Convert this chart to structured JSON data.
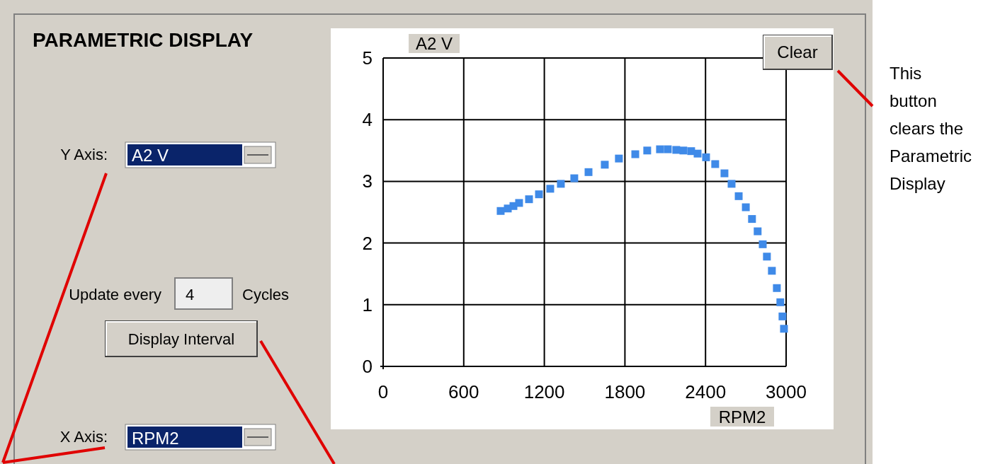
{
  "chart_data": {
    "type": "scatter",
    "title": "PARAMETRIC DISPLAY",
    "xlabel": "RPM2",
    "ylabel": "A2 V",
    "x": [
      875,
      928,
      970,
      1012,
      1086,
      1160,
      1244,
      1323,
      1423,
      1529,
      1650,
      1755,
      1877,
      1966,
      2061,
      2119,
      2182,
      2235,
      2293,
      2341,
      2404,
      2472,
      2541,
      2594,
      2647,
      2700,
      2746,
      2788,
      2826,
      2857,
      2894,
      2931,
      2957,
      2973,
      2984
    ],
    "series": [
      {
        "color": "#3f8ae8",
        "values": [
          2.52,
          2.56,
          2.6,
          2.65,
          2.71,
          2.79,
          2.88,
          2.96,
          3.05,
          3.15,
          3.27,
          3.37,
          3.44,
          3.5,
          3.52,
          3.52,
          3.51,
          3.5,
          3.49,
          3.45,
          3.39,
          3.28,
          3.13,
          2.96,
          2.76,
          2.58,
          2.39,
          2.19,
          1.98,
          1.78,
          1.55,
          1.27,
          1.04,
          0.81,
          0.61
        ]
      }
    ],
    "xlim": [
      0,
      3000
    ],
    "xticks": [
      0,
      600,
      1200,
      1800,
      2400,
      3000
    ],
    "ylim": [
      0,
      5
    ],
    "yticks": [
      0,
      1,
      2,
      3,
      4,
      5
    ],
    "grid": true,
    "marker": "square",
    "annotations": [
      "Y Axis:",
      "A2 V",
      "Update every",
      "4",
      "Cycles",
      "Display Interval",
      "X Axis:",
      "RPM2",
      "Clear",
      "This button clears the Parametric Display"
    ]
  }
}
